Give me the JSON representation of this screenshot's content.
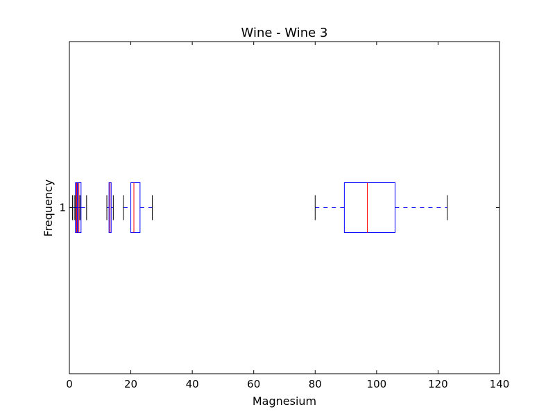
{
  "chart_data": {
    "type": "box",
    "orientation": "horizontal",
    "title": "Wine - Wine 3",
    "xlabel": "Magnesium",
    "ylabel": "Frequency",
    "xlim": [
      0,
      140
    ],
    "xticks": [
      0,
      20,
      40,
      60,
      80,
      100,
      120,
      140
    ],
    "yticks": [
      1
    ],
    "grid": false,
    "colors": {
      "box": "#0000ff",
      "median": "#ff0000",
      "whisker": "#0000ff",
      "cap": "#000000",
      "axis": "#000000"
    },
    "boxes": [
      {
        "min": 1.0,
        "q1": 2.0,
        "median": 2.3,
        "q3": 2.6,
        "max": 3.2
      },
      {
        "min": 1.6,
        "q1": 2.1,
        "median": 2.5,
        "q3": 3.0,
        "max": 3.6
      },
      {
        "min": 2.0,
        "q1": 2.6,
        "median": 3.1,
        "q3": 3.8,
        "max": 5.6
      },
      {
        "min": 12.2,
        "q1": 12.9,
        "median": 13.2,
        "q3": 13.6,
        "max": 14.3
      },
      {
        "min": 17.6,
        "q1": 20.0,
        "median": 21.0,
        "q3": 23.0,
        "max": 27.0
      },
      {
        "min": 80.0,
        "q1": 89.5,
        "median": 97.0,
        "q3": 106.0,
        "max": 123.0
      }
    ]
  }
}
